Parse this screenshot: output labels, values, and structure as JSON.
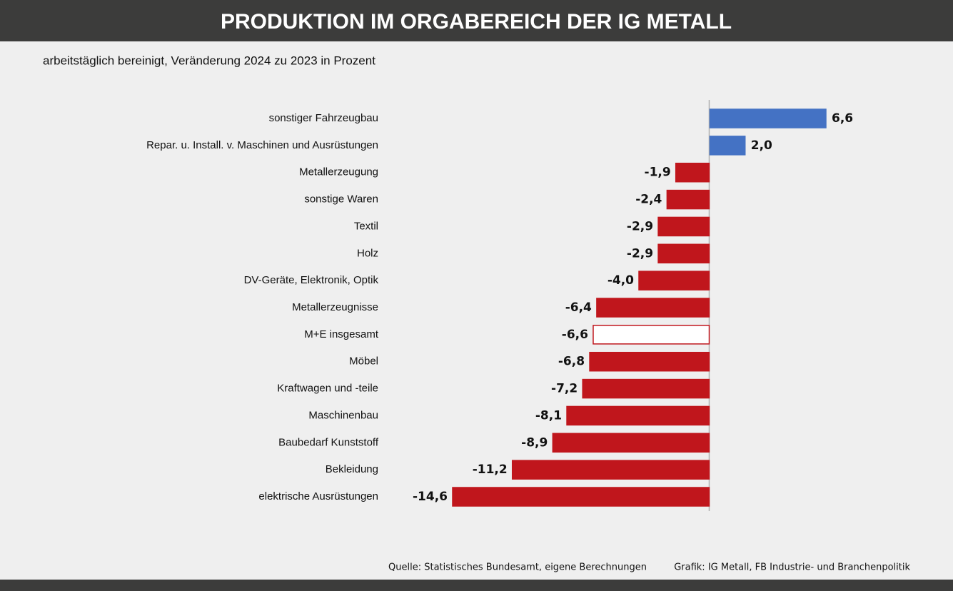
{
  "chart_data": {
    "type": "barh",
    "title": "PRODUKTION IM ORGABEREICH DER IG METALL",
    "subtitle": "arbeitstäglich bereinigt, Veränderung 2024 zu 2023 in Prozent",
    "categories": [
      "sonstiger Fahrzeugbau",
      "Repar. u. Install. v. Maschinen und Ausrüstungen",
      "Metallerzeugung",
      "sonstige Waren",
      "Textil",
      "Holz",
      "DV-Geräte, Elektronik, Optik",
      "Metallerzeugnisse",
      "M+E insgesamt",
      "Möbel",
      "Kraftwagen und -teile",
      "Maschinenbau",
      "Baubedarf Kunststoff",
      "Bekleidung",
      "elektrische Ausrüstungen"
    ],
    "values": [
      6.6,
      2.0,
      -1.9,
      -2.4,
      -2.9,
      -2.9,
      -4.0,
      -6.4,
      -6.6,
      -6.8,
      -7.2,
      -8.1,
      -8.9,
      -11.2,
      -14.6
    ],
    "value_labels": [
      "6,6",
      "2,0",
      "-1,9",
      "-2,4",
      "-2,9",
      "-2,9",
      "-4,0",
      "-6,4",
      "-6,6",
      "-6,8",
      "-7,2",
      "-8,1",
      "-8,9",
      "-11,2",
      "-14,6"
    ],
    "colors": [
      "#4472c4",
      "#4472c4",
      "#c0161c",
      "#c0161c",
      "#c0161c",
      "#c0161c",
      "#c0161c",
      "#c0161c",
      "#ffffff",
      "#c0161c",
      "#c0161c",
      "#c0161c",
      "#c0161c",
      "#c0161c",
      "#c0161c"
    ],
    "edgecolors": [
      "#4472c4",
      "#4472c4",
      "#c0161c",
      "#c0161c",
      "#c0161c",
      "#c0161c",
      "#c0161c",
      "#c0161c",
      "#c0161c",
      "#c0161c",
      "#c0161c",
      "#c0161c",
      "#c0161c",
      "#c0161c",
      "#c0161c"
    ],
    "source": "Quelle: Statistisches Bundesamt, eigene Berechnungen",
    "credit": "Grafik: IG Metall, FB Industrie- und Branchenpolitik"
  }
}
